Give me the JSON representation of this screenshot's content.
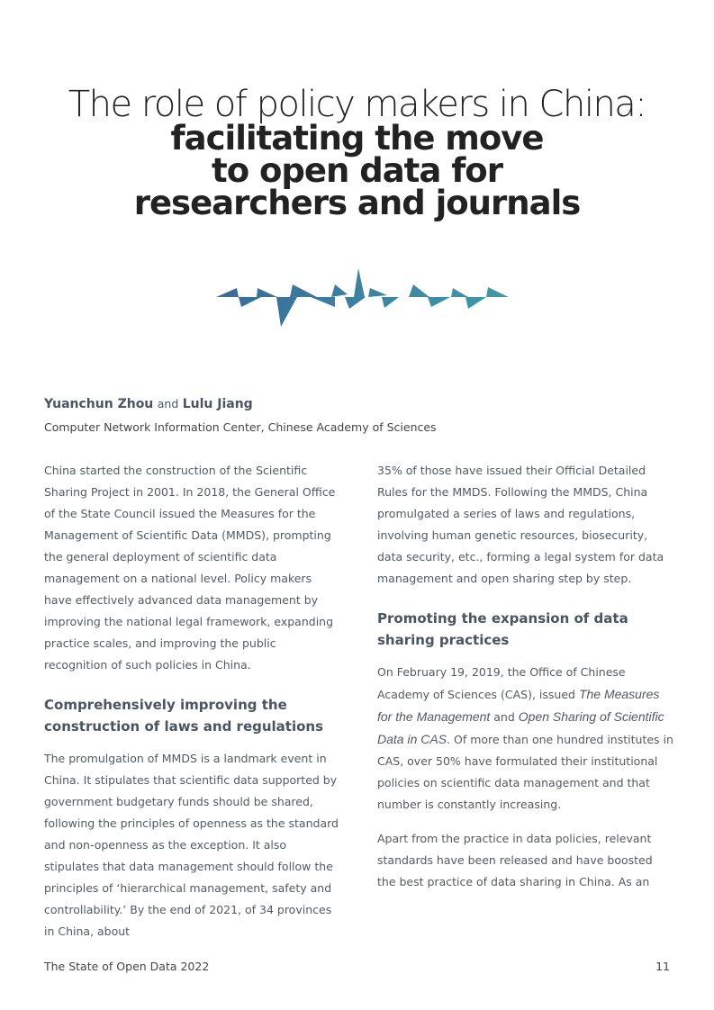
{
  "title": {
    "line1": "The role of policy makers in China:",
    "line2": "facilitating the move",
    "line3": "to open data for",
    "line4": "researchers and journals"
  },
  "colors": {
    "wave_start": "#3b6a97",
    "wave_end": "#3f9aa9"
  },
  "authors": {
    "author1": "Yuanchun Zhou",
    "and": "and",
    "author2": "Lulu Jiang",
    "affiliation": "Computer Network Information Center, Chinese Academy of Sciences"
  },
  "left": {
    "p1": "China started the construction of the Scientific Sharing Project in 2001. In 2018, the General Office of the State Council issued the Measures for the Management of Scientific Data (MMDS), prompting the general deployment of scientific data management on a national level. Policy makers have effectively advanced data management by improving the national legal framework, expanding practice scales, and improving the public recognition of such policies in China.",
    "h1": "Comprehensively improving the construction of laws and regulations",
    "p2": "The promulgation of MMDS is a landmark event in China. It stipulates that scientific data supported by government budgetary funds should be shared, following the principles of openness as the standard and non-openness as the exception. It also stipulates that data management should follow the principles of ‘hierarchical management, safety and controllability.’ By the end of 2021, of 34 provinces in China, about"
  },
  "right": {
    "p1": "35% of those have issued their Official Detailed Rules for the MMDS. Following the MMDS, China promulgated a series of laws and regulations, involving human genetic resources, biosecurity, data security, etc., forming a legal system for data management and open sharing step by step.",
    "h1": "Promoting the expansion of data sharing practices",
    "p2a": "On February 19, 2019, the Office of Chinese Academy of Sciences (CAS), issued ",
    "p2i1": "The Measures for the Management",
    "p2b": " and ",
    "p2i2": "Open Sharing of Scientific Data in CAS",
    "p2c": ". Of more than one hundred institutes in CAS, over 50% have formulated their institutional policies on scientific data management and that number is constantly increasing.",
    "p3": "Apart from the practice in data policies, relevant standards have been released and have boosted the best practice of data sharing in China. As an"
  },
  "footer": {
    "publication": "The State of Open Data 2022",
    "page_number": "11"
  }
}
